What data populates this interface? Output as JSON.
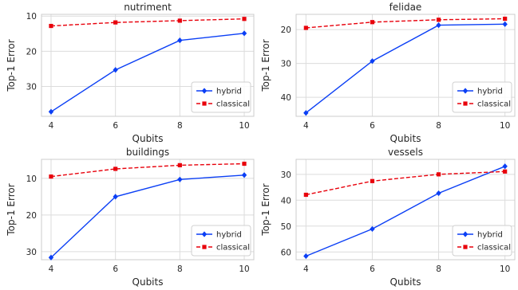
{
  "chart_data": [
    {
      "type": "line",
      "title": "nutriment",
      "xlabel": "Qubits",
      "ylabel": "Top-1 Error",
      "x": [
        4,
        6,
        8,
        10
      ],
      "y_inverted": true,
      "ylim": [
        38.5,
        9.5
      ],
      "yticks": [
        10,
        20,
        30
      ],
      "grid": true,
      "legend_position": "lower right",
      "series": [
        {
          "name": "hybrid",
          "values": [
            37.2,
            25.3,
            16.9,
            14.9
          ],
          "color": "#0b3ff5",
          "marker": "diamond",
          "linestyle": "solid"
        },
        {
          "name": "classical",
          "values": [
            12.8,
            11.8,
            11.3,
            10.8
          ],
          "color": "#e8000b",
          "marker": "square",
          "linestyle": "dashed"
        }
      ]
    },
    {
      "type": "line",
      "title": "felidae",
      "xlabel": "Qubits",
      "ylabel": "Top-1 Error",
      "x": [
        4,
        6,
        8,
        10
      ],
      "y_inverted": true,
      "ylim": [
        45.6,
        15.5
      ],
      "yticks": [
        20,
        30,
        40
      ],
      "grid": true,
      "legend_position": "lower right",
      "series": [
        {
          "name": "hybrid",
          "values": [
            44.6,
            29.3,
            18.7,
            18.4
          ],
          "color": "#0b3ff5",
          "marker": "diamond",
          "linestyle": "solid"
        },
        {
          "name": "classical",
          "values": [
            19.5,
            17.8,
            17.1,
            16.8
          ],
          "color": "#e8000b",
          "marker": "square",
          "linestyle": "dashed"
        }
      ]
    },
    {
      "type": "line",
      "title": "buildings",
      "xlabel": "Qubits",
      "ylabel": "Top-1 Error",
      "x": [
        4,
        6,
        8,
        10
      ],
      "y_inverted": true,
      "ylim": [
        32.2,
        4.8
      ],
      "yticks": [
        10,
        20,
        30
      ],
      "grid": true,
      "legend_position": "lower right",
      "series": [
        {
          "name": "hybrid",
          "values": [
            31.6,
            15.0,
            10.3,
            9.1
          ],
          "color": "#0b3ff5",
          "marker": "diamond",
          "linestyle": "solid"
        },
        {
          "name": "classical",
          "values": [
            9.5,
            7.4,
            6.4,
            6.0
          ],
          "color": "#e8000b",
          "marker": "square",
          "linestyle": "dashed"
        }
      ]
    },
    {
      "type": "line",
      "title": "vessels",
      "xlabel": "Qubits",
      "ylabel": "Top-1 Error",
      "x": [
        4,
        6,
        8,
        10
      ],
      "y_inverted": true,
      "ylim": [
        63.0,
        24.2
      ],
      "yticks": [
        30,
        40,
        50,
        60
      ],
      "grid": true,
      "legend_position": "lower right",
      "series": [
        {
          "name": "hybrid",
          "values": [
            61.6,
            51.1,
            37.3,
            26.9
          ],
          "color": "#0b3ff5",
          "marker": "diamond",
          "linestyle": "solid"
        },
        {
          "name": "classical",
          "values": [
            37.9,
            32.6,
            30.0,
            28.9
          ],
          "color": "#e8000b",
          "marker": "square",
          "linestyle": "dashed"
        }
      ]
    }
  ]
}
